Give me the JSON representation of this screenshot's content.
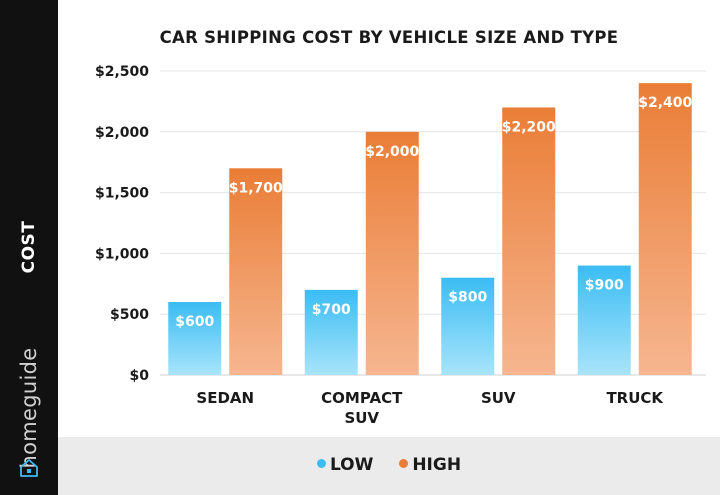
{
  "side": {
    "ylabel": "COST",
    "brand": "homeguide",
    "brand_icon": "house-icon"
  },
  "legend": {
    "low_label": "LOW",
    "high_label": "HIGH"
  },
  "colors": {
    "low_top": "#3bbcf3",
    "low_bottom": "#a8e4fb",
    "high_top": "#ea7d36",
    "high_bottom": "#f6b690",
    "sidebar": "#111111",
    "legend_band": "#ebebeb"
  },
  "chart_data": {
    "type": "bar",
    "title": "CAR SHIPPING COST BY VEHICLE SIZE AND TYPE",
    "xlabel": "",
    "ylabel": "COST",
    "categories": [
      [
        "SEDAN"
      ],
      [
        "COMPACT",
        "SUV"
      ],
      [
        "SUV"
      ],
      [
        "TRUCK"
      ]
    ],
    "series": [
      {
        "name": "LOW",
        "values": [
          600,
          700,
          800,
          900
        ],
        "labels": [
          "$600",
          "$700",
          "$800",
          "$900"
        ]
      },
      {
        "name": "HIGH",
        "values": [
          1700,
          2000,
          2200,
          2400
        ],
        "labels": [
          "$1,700",
          "$2,000",
          "$2,200",
          "$2,400"
        ]
      }
    ],
    "ylim": [
      0,
      2500
    ],
    "yticks": [
      0,
      500,
      1000,
      1500,
      2000,
      2500
    ],
    "ytick_labels": [
      "$0",
      "$500",
      "$1,000",
      "$1,500",
      "$2,000",
      "$2,500"
    ],
    "grid": true,
    "legend_position": "bottom"
  }
}
